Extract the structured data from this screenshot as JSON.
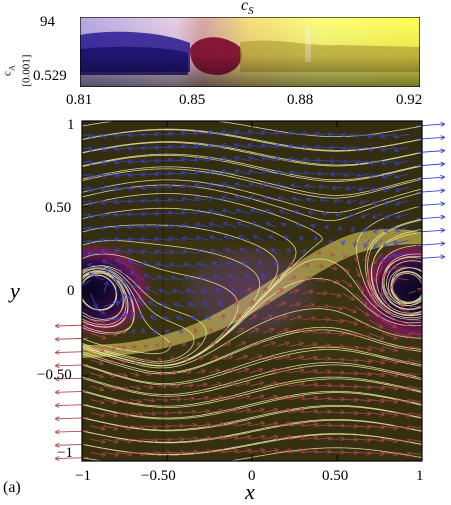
{
  "panel_label": "(a)",
  "colorbar": {
    "title": "c",
    "title_subscript": "S",
    "ylabel": "c",
    "ylabel_subscript": "A",
    "ylabel_unit": " [0.001]",
    "y_top": "94",
    "y_bottom": "0.529",
    "x_ticks": [
      "0.81",
      "0.85",
      "0.88",
      "0.92"
    ]
  },
  "main_plot": {
    "xlabel": "x",
    "ylabel": "y",
    "x_ticks": [
      "−1",
      "−0.50",
      "0",
      "0.50",
      "1"
    ],
    "y_ticks": [
      "1",
      "0.50",
      "0",
      "−0.50",
      "−1"
    ]
  },
  "chart_data": {
    "type": "heatmap",
    "title": "",
    "xlabel": "x",
    "ylabel": "y",
    "xlim": [
      -1,
      1
    ],
    "ylim": [
      -1,
      1
    ],
    "x_ticks": [
      -1,
      -0.5,
      0,
      0.5,
      1
    ],
    "y_ticks": [
      -1,
      -0.5,
      0,
      0.5,
      1
    ],
    "overlays": [
      "streamlines",
      "vector arrows"
    ],
    "colorbar": {
      "title": "c_S",
      "x_range": [
        0.81,
        0.92
      ],
      "x_ticks": [
        0.81,
        0.85,
        0.88,
        0.92
      ],
      "y_label": "c_A [0.001]",
      "y_range_labels": [
        "94",
        "0.529"
      ]
    },
    "colors": {
      "background": "#3a3413",
      "low": "#160a3a",
      "mid": "#8c1a4a",
      "high": "#e8d83a",
      "streamline": "#f4eeaa",
      "arrow_upper": "#3a46cc",
      "arrow_lower": "#b04a4a"
    }
  }
}
